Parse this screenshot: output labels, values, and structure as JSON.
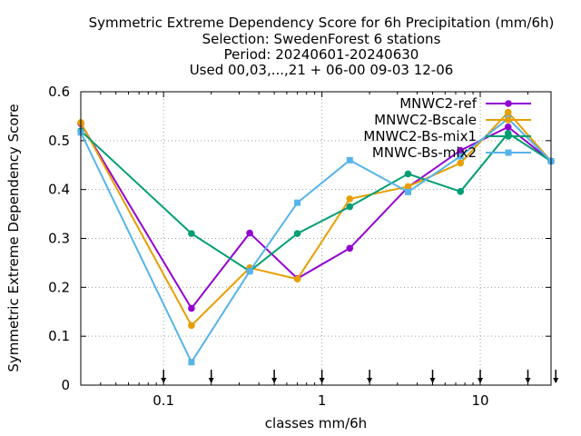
{
  "chart_data": {
    "type": "line",
    "title_lines": [
      "Symmetric Extreme Dependency Score  for 6h Precipitation (mm/6h)",
      "Selection: SwedenForest      6 stations",
      "Period: 20240601-20240630",
      "Used 00,03,...,21 + 06-00 09-03 12-06"
    ],
    "xlabel": "classes mm/6h",
    "ylabel": "Symmetric Extreme Dependency Score",
    "xscale": "log",
    "xlim": [
      0.03,
      28
    ],
    "ylim": [
      0,
      0.6
    ],
    "xticks": [
      {
        "value": 0.1,
        "label": "0.1"
      },
      {
        "value": 1,
        "label": "1"
      },
      {
        "value": 10,
        "label": "10"
      }
    ],
    "yticks": [
      {
        "value": 0,
        "label": "0"
      },
      {
        "value": 0.1,
        "label": "0.1"
      },
      {
        "value": 0.2,
        "label": "0.2"
      },
      {
        "value": 0.3,
        "label": "0.3"
      },
      {
        "value": 0.4,
        "label": "0.4"
      },
      {
        "value": 0.5,
        "label": "0.5"
      },
      {
        "value": 0.6,
        "label": "0.6"
      }
    ],
    "grid": true,
    "legend_position": "top-right",
    "threshold_arrows": [
      0.1,
      0.2,
      0.5,
      1,
      2,
      5,
      10,
      20,
      30
    ],
    "x": [
      0.03,
      0.15,
      0.35,
      0.7,
      1.5,
      3.5,
      7.5,
      15,
      28
    ],
    "series": [
      {
        "name": "MNWC2-ref",
        "color": "#9400d3",
        "marker": "circle",
        "values": [
          0.535,
          0.157,
          0.311,
          0.218,
          0.28,
          0.405,
          0.48,
          0.528,
          0.458
        ]
      },
      {
        "name": "MNWC2-Bscale",
        "color": "#e69f00",
        "marker": "circle",
        "values": [
          0.537,
          0.122,
          0.24,
          0.217,
          0.381,
          0.406,
          0.454,
          0.558,
          0.458
        ]
      },
      {
        "name": "MNWC2-Bs-mix1",
        "color": "#009e73",
        "marker": "circle",
        "values": [
          0.52,
          0.31,
          0.233,
          0.31,
          0.365,
          0.432,
          0.396,
          0.515,
          0.458
        ]
      },
      {
        "name": "MNWC-Bs-mix2",
        "color": "#56b4e9",
        "marker": "square",
        "values": [
          0.517,
          0.047,
          0.233,
          0.373,
          0.46,
          0.395,
          0.468,
          0.545,
          0.458
        ]
      }
    ]
  }
}
